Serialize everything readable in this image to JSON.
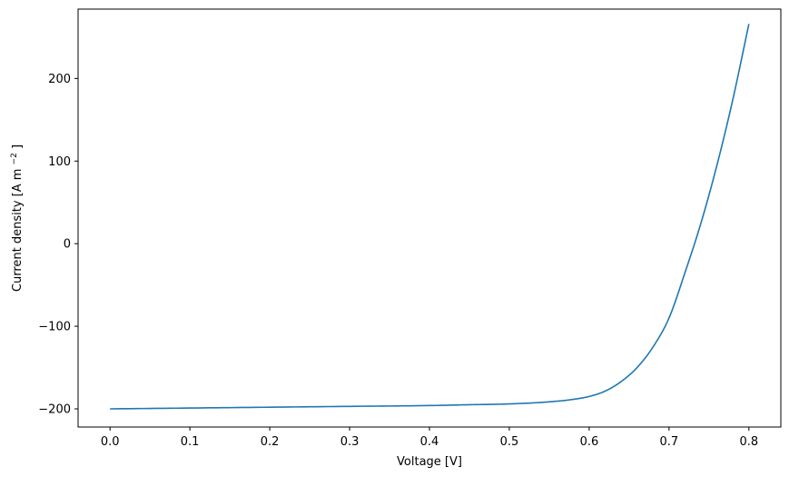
{
  "chart_data": {
    "type": "line",
    "xlabel": "Voltage [V]",
    "ylabel_main": "Current density [A m",
    "ylabel_sup": "−2",
    "ylabel_end": "]",
    "xlim": [
      -0.04,
      0.84
    ],
    "ylim": [
      -222,
      284
    ],
    "x_ticks": [
      0.0,
      0.1,
      0.2,
      0.3,
      0.4,
      0.5,
      0.6,
      0.7,
      0.8
    ],
    "x_tick_labels": [
      "0.0",
      "0.1",
      "0.2",
      "0.3",
      "0.4",
      "0.5",
      "0.6",
      "0.7",
      "0.8"
    ],
    "y_ticks": [
      -200,
      -100,
      0,
      100,
      200
    ],
    "y_tick_labels": [
      "−200",
      "−100",
      "0",
      "100",
      "200"
    ],
    "grid": false,
    "color": "#1f77b4",
    "series": [
      {
        "x": [
          0.0,
          0.1,
          0.2,
          0.3,
          0.4,
          0.45,
          0.5,
          0.55,
          0.58,
          0.6,
          0.62,
          0.64,
          0.66,
          0.68,
          0.7,
          0.72,
          0.74,
          0.76,
          0.78,
          0.8
        ],
        "values": [
          -200,
          -199,
          -198,
          -197,
          -196,
          -195,
          -194,
          -191.5,
          -188.5,
          -185,
          -178.5,
          -167,
          -150,
          -125,
          -90,
          -35,
          25,
          95,
          175,
          266
        ]
      }
    ]
  }
}
